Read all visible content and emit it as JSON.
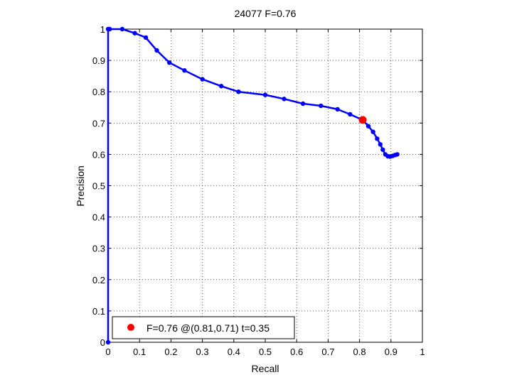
{
  "chart_data": {
    "type": "line",
    "title": "24077 F=0.76",
    "xlabel": "Recall",
    "ylabel": "Precision",
    "xlim": [
      0,
      1
    ],
    "ylim": [
      0,
      1
    ],
    "xticks": [
      "0",
      "0.1",
      "0.2",
      "0.3",
      "0.4",
      "0.5",
      "0.6",
      "0.7",
      "0.8",
      "0.9",
      "1"
    ],
    "yticks": [
      "0",
      "0.1",
      "0.2",
      "0.3",
      "0.4",
      "0.5",
      "0.6",
      "0.7",
      "0.8",
      "0.9",
      "1"
    ],
    "grid": true,
    "series": [
      {
        "color": "#0000ff",
        "x": [
          0.0,
          0.0,
          0.005,
          0.045,
          0.085,
          0.12,
          0.155,
          0.195,
          0.243,
          0.3,
          0.36,
          0.415,
          0.5,
          0.56,
          0.62,
          0.677,
          0.73,
          0.77,
          0.81,
          0.828,
          0.843,
          0.856,
          0.866,
          0.874,
          0.882,
          0.89,
          0.897,
          0.905,
          0.913,
          0.92
        ],
        "y": [
          0.0,
          1.0,
          1.0,
          1.0,
          0.987,
          0.973,
          0.932,
          0.893,
          0.868,
          0.84,
          0.818,
          0.8,
          0.79,
          0.777,
          0.762,
          0.755,
          0.744,
          0.728,
          0.71,
          0.69,
          0.672,
          0.65,
          0.632,
          0.615,
          0.6,
          0.594,
          0.593,
          0.595,
          0.598,
          0.6
        ]
      }
    ],
    "highlight": {
      "x": 0.81,
      "y": 0.71,
      "color": "#ff0000"
    },
    "legend": {
      "label": "F=0.76 @(0.81,0.71) t=0.35",
      "placement": "bottom-left",
      "marker_color": "#ff0000"
    }
  }
}
